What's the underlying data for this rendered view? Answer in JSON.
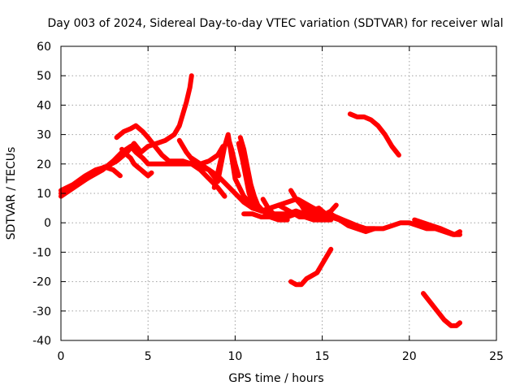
{
  "chart_data": {
    "type": "line",
    "title": "Day 003 of 2024, Sidereal Day-to-day VTEC variation (SDTVAR) for receiver wlal",
    "xlabel": "GPS time / hours",
    "ylabel": "SDTVAR / TECUs",
    "xlim": [
      0,
      25
    ],
    "ylim": [
      -40,
      60
    ],
    "xticks": [
      0,
      5,
      10,
      15,
      20,
      25
    ],
    "yticks": [
      -40,
      -30,
      -20,
      -10,
      0,
      10,
      20,
      30,
      40,
      50,
      60
    ],
    "grid": true,
    "legend": "none",
    "series_color": "#ff0000",
    "series": [
      {
        "name": "arc-1",
        "x": [
          0.0,
          0.5,
          1.0,
          1.5,
          2.0,
          2.5,
          3.0,
          3.4
        ],
        "y": [
          9,
          11,
          13,
          15,
          17,
          19,
          18,
          16
        ]
      },
      {
        "name": "arc-2",
        "x": [
          0.0,
          0.7,
          1.4,
          2.0,
          2.6,
          3.2,
          3.8,
          4.2,
          4.6,
          5.0,
          5.5,
          6.0,
          6.5,
          6.8,
          7.0,
          7.2,
          7.4,
          7.5
        ],
        "y": [
          11,
          13,
          16,
          18,
          19,
          21,
          24,
          27,
          24,
          26,
          27,
          28,
          30,
          33,
          37,
          41,
          46,
          50
        ]
      },
      {
        "name": "arc-3",
        "x": [
          0.0,
          0.6,
          1.2,
          1.8,
          2.4,
          3.0,
          3.5,
          4.0,
          4.3,
          4.7,
          5.0,
          5.5,
          6.0,
          6.5,
          7.0,
          7.5,
          8.0,
          8.5,
          9.0,
          9.4
        ],
        "y": [
          10,
          12,
          14,
          16,
          18,
          21,
          24,
          26,
          24,
          22,
          20,
          20,
          20,
          20,
          20,
          20,
          18,
          15,
          12,
          9
        ]
      },
      {
        "name": "arc-4",
        "x": [
          3.2,
          3.6,
          4.0,
          4.3,
          4.7,
          5.0,
          5.4,
          5.8,
          6.2,
          6.6,
          7.0,
          7.5,
          8.0,
          8.5,
          9.0,
          9.3
        ],
        "y": [
          29,
          31,
          32,
          33,
          31,
          29,
          26,
          23,
          21,
          21,
          21,
          20,
          20,
          21,
          23,
          26
        ]
      },
      {
        "name": "arc-5",
        "x": [
          3.5,
          3.8,
          4.0,
          4.2,
          4.4,
          4.6,
          4.8,
          5.0,
          5.2
        ],
        "y": [
          25,
          23,
          22,
          20,
          19,
          18,
          17,
          16,
          17
        ]
      },
      {
        "name": "arc-6",
        "x": [
          6.8,
          7.2,
          7.6,
          8.0,
          8.5,
          9.0,
          9.5,
          10.0,
          10.5,
          11.0,
          11.5,
          12.0
        ],
        "y": [
          28,
          24,
          21,
          19,
          18,
          16,
          13,
          10,
          7,
          5,
          4,
          4
        ]
      },
      {
        "name": "arc-7",
        "x": [
          8.8,
          9.0,
          9.2,
          9.4,
          9.6,
          9.8,
          10.0,
          10.2
        ],
        "y": [
          12,
          17,
          22,
          26,
          29,
          25,
          20,
          16
        ]
      },
      {
        "name": "arc-8",
        "x": [
          7.5,
          8.0,
          8.5,
          9.0,
          9.2,
          9.4,
          9.6,
          10.0,
          10.5,
          11.0,
          11.5,
          12.0,
          12.5,
          13.0,
          13.5
        ],
        "y": [
          22,
          20,
          18,
          14,
          20,
          26,
          30,
          15,
          9,
          6,
          4,
          3,
          3,
          3,
          4
        ]
      },
      {
        "name": "arc-9",
        "x": [
          10.2,
          10.4,
          10.6,
          10.8,
          11.0,
          11.2,
          11.5,
          12.0,
          12.5,
          13.0,
          13.5,
          14.0,
          14.5,
          15.0,
          15.5
        ],
        "y": [
          27,
          22,
          16,
          10,
          7,
          5,
          4,
          5,
          6,
          7,
          8,
          6,
          4,
          3,
          2
        ]
      },
      {
        "name": "arc-10",
        "x": [
          10.3,
          10.5,
          10.7,
          10.9,
          11.1,
          11.3,
          11.6,
          12.0,
          12.5,
          13.0
        ],
        "y": [
          29,
          25,
          19,
          13,
          9,
          6,
          4,
          2,
          1,
          1
        ]
      },
      {
        "name": "arc-11",
        "x": [
          10.5,
          11.0,
          11.5,
          12.0,
          12.5,
          13.0,
          13.5,
          14.0,
          14.5,
          15.0,
          15.5,
          16.0,
          16.5,
          17.0,
          17.5,
          18.0,
          18.5,
          19.0,
          19.5,
          20.0,
          20.5,
          21.0,
          21.5,
          22.0,
          22.5,
          22.9
        ],
        "y": [
          3,
          3,
          2,
          2,
          2,
          3,
          4,
          3,
          3,
          2,
          2,
          1,
          0,
          -1,
          -2,
          -2,
          -2,
          -1,
          0,
          0,
          -1,
          -2,
          -2,
          -3,
          -4,
          -4
        ]
      },
      {
        "name": "arc-12",
        "x": [
          11.6,
          11.9,
          12.2,
          12.5,
          13.0,
          13.5,
          14.0,
          14.5,
          15.0,
          15.5,
          16.0,
          16.5,
          17.0,
          17.5,
          18.0
        ],
        "y": [
          8,
          5,
          3,
          2,
          2,
          3,
          3,
          2,
          2,
          3,
          1,
          -1,
          -2,
          -3,
          -2
        ]
      },
      {
        "name": "arc-13",
        "x": [
          12.5,
          12.8,
          13.1,
          13.4,
          13.7,
          14.0,
          14.5,
          15.0,
          15.5
        ],
        "y": [
          6,
          5,
          4,
          3,
          2,
          2,
          1,
          1,
          1
        ]
      },
      {
        "name": "arc-14",
        "x": [
          13.2,
          13.5,
          13.8,
          14.0,
          14.4,
          14.8,
          15.2,
          15.5,
          15.8
        ],
        "y": [
          11,
          8,
          6,
          4,
          4,
          5,
          3,
          4,
          6
        ]
      },
      {
        "name": "arc-15",
        "x": [
          13.6,
          13.9,
          14.2,
          14.5,
          14.8,
          15.1,
          15.4,
          15.8,
          16.2,
          16.6,
          17.0,
          17.5,
          18.0
        ],
        "y": [
          8,
          7,
          6,
          5,
          4,
          3,
          3,
          2,
          1,
          0,
          -1,
          -2,
          -2
        ]
      },
      {
        "name": "arc-16",
        "x": [
          20.3,
          20.8,
          21.3,
          21.8,
          22.2,
          22.6,
          22.9
        ],
        "y": [
          1,
          0,
          -1,
          -2,
          -3,
          -4,
          -3
        ]
      },
      {
        "name": "arc-17",
        "x": [
          13.2,
          13.5,
          13.8,
          14.1,
          14.4,
          14.7,
          15.0,
          15.3,
          15.5
        ],
        "y": [
          -20,
          -21,
          -21,
          -19,
          -18,
          -17,
          -14,
          -11,
          -9
        ]
      },
      {
        "name": "arc-18",
        "x": [
          16.6,
          17.0,
          17.4,
          17.8,
          18.2,
          18.6,
          19.0,
          19.4
        ],
        "y": [
          37,
          36,
          36,
          35,
          33,
          30,
          26,
          23
        ]
      },
      {
        "name": "arc-19",
        "x": [
          20.8,
          21.2,
          21.6,
          22.0,
          22.4,
          22.7,
          22.9
        ],
        "y": [
          -24,
          -27,
          -30,
          -33,
          -35,
          -35,
          -34
        ]
      }
    ]
  }
}
